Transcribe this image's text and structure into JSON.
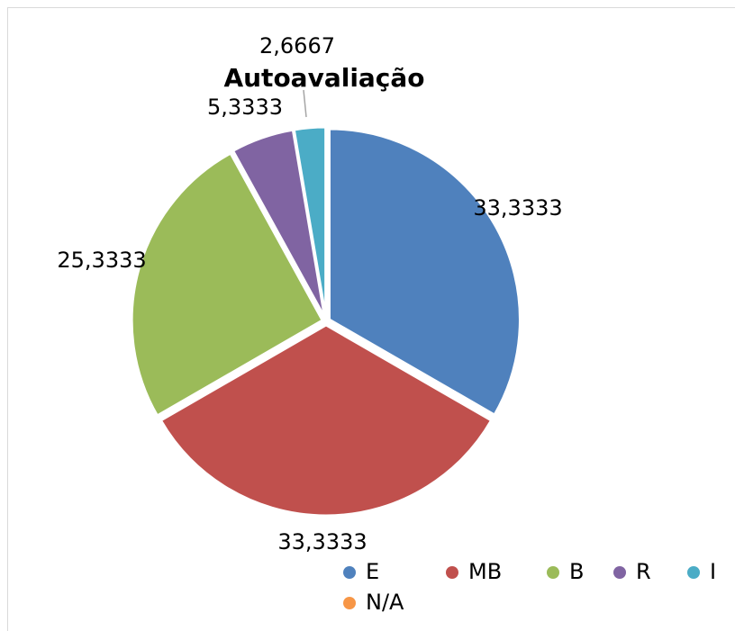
{
  "chart_data": {
    "type": "pie",
    "title": "Autoavaliação",
    "categories": [
      "E",
      "MB",
      "B",
      "R",
      "I",
      "N/A"
    ],
    "values": [
      33.3333,
      33.3333,
      25.3333,
      5.3333,
      2.6667,
      0
    ],
    "value_labels": [
      "33,3333",
      "33,3333",
      "25,3333",
      "5,3333",
      "2,6667",
      null
    ],
    "colors": [
      "#4f81bd",
      "#c0504d",
      "#9bbb59",
      "#8064a2",
      "#4bacc6",
      "#f79646"
    ],
    "legend": "bottom"
  }
}
